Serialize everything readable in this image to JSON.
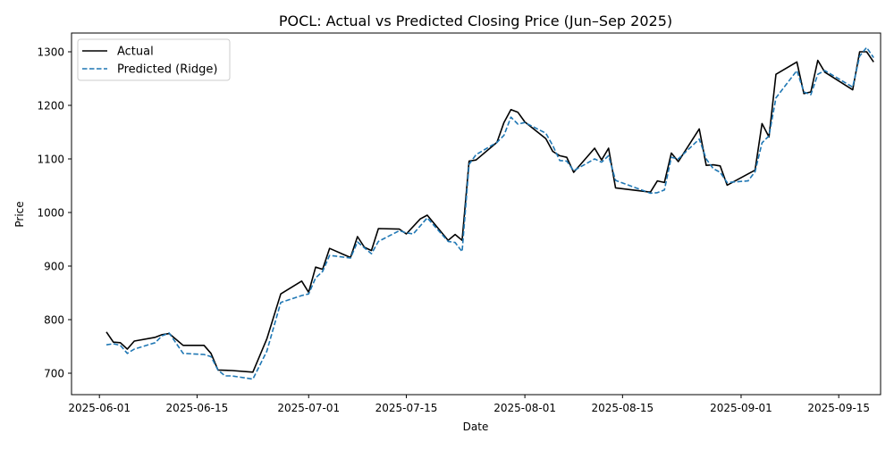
{
  "chart_data": {
    "type": "line",
    "title": "POCL: Actual vs Predicted Closing Price (Jun–Sep 2025)",
    "xlabel": "Date",
    "ylabel": "Price",
    "xlim": [
      "2025-05-28",
      "2025-09-21"
    ],
    "ylim": [
      660,
      1335
    ],
    "x_ticks": [
      "2025-06-01",
      "2025-06-15",
      "2025-07-01",
      "2025-07-15",
      "2025-08-01",
      "2025-08-15",
      "2025-09-01",
      "2025-09-15"
    ],
    "y_ticks": [
      700,
      800,
      900,
      1000,
      1100,
      1200,
      1300
    ],
    "grid": false,
    "legend_position": "top-left",
    "series": [
      {
        "name": "Actual",
        "color": "#000000",
        "style": "solid",
        "points": [
          [
            "2025-06-02",
            777
          ],
          [
            "2025-06-03",
            758
          ],
          [
            "2025-06-04",
            757
          ],
          [
            "2025-06-05",
            745
          ],
          [
            "2025-06-06",
            760
          ],
          [
            "2025-06-09",
            767
          ],
          [
            "2025-06-10",
            772
          ],
          [
            "2025-06-11",
            774
          ],
          [
            "2025-06-13",
            752
          ],
          [
            "2025-06-16",
            752
          ],
          [
            "2025-06-17",
            737
          ],
          [
            "2025-06-18",
            706
          ],
          [
            "2025-06-20",
            705
          ],
          [
            "2025-06-23",
            702
          ],
          [
            "2025-06-25",
            764
          ],
          [
            "2025-06-27",
            848
          ],
          [
            "2025-06-30",
            872
          ],
          [
            "2025-07-01",
            851
          ],
          [
            "2025-07-02",
            898
          ],
          [
            "2025-07-03",
            894
          ],
          [
            "2025-07-04",
            933
          ],
          [
            "2025-07-07",
            916
          ],
          [
            "2025-07-08",
            955
          ],
          [
            "2025-07-09",
            935
          ],
          [
            "2025-07-10",
            929
          ],
          [
            "2025-07-11",
            970
          ],
          [
            "2025-07-14",
            969
          ],
          [
            "2025-07-15",
            960
          ],
          [
            "2025-07-17",
            988
          ],
          [
            "2025-07-18",
            995
          ],
          [
            "2025-07-21",
            948
          ],
          [
            "2025-07-22",
            959
          ],
          [
            "2025-07-23",
            948
          ],
          [
            "2025-07-24",
            1096
          ],
          [
            "2025-07-25",
            1098
          ],
          [
            "2025-07-28",
            1131
          ],
          [
            "2025-07-29",
            1168
          ],
          [
            "2025-07-30",
            1192
          ],
          [
            "2025-07-31",
            1187
          ],
          [
            "2025-08-01",
            1169
          ],
          [
            "2025-08-04",
            1138
          ],
          [
            "2025-08-05",
            1114
          ],
          [
            "2025-08-06",
            1106
          ],
          [
            "2025-08-07",
            1103
          ],
          [
            "2025-08-08",
            1075
          ],
          [
            "2025-08-11",
            1120
          ],
          [
            "2025-08-12",
            1098
          ],
          [
            "2025-08-13",
            1120
          ],
          [
            "2025-08-14",
            1046
          ],
          [
            "2025-08-19",
            1038
          ],
          [
            "2025-08-20",
            1059
          ],
          [
            "2025-08-21",
            1056
          ],
          [
            "2025-08-22",
            1111
          ],
          [
            "2025-08-23",
            1095
          ],
          [
            "2025-08-26",
            1156
          ],
          [
            "2025-08-27",
            1088
          ],
          [
            "2025-08-28",
            1089
          ],
          [
            "2025-08-29",
            1087
          ],
          [
            "2025-08-30",
            1051
          ],
          [
            "2025-09-03",
            1079
          ],
          [
            "2025-09-04",
            1166
          ],
          [
            "2025-09-05",
            1141
          ],
          [
            "2025-09-06",
            1258
          ],
          [
            "2025-09-09",
            1281
          ],
          [
            "2025-09-10",
            1222
          ],
          [
            "2025-09-11",
            1225
          ],
          [
            "2025-09-12",
            1284
          ],
          [
            "2025-09-13",
            1262
          ],
          [
            "2025-09-17",
            1229
          ],
          [
            "2025-09-18",
            1300
          ],
          [
            "2025-09-19",
            1300
          ],
          [
            "2025-09-20",
            1281
          ]
        ]
      },
      {
        "name": "Predicted (Ridge)",
        "color": "#1f77b4",
        "style": "dashed",
        "points": [
          [
            "2025-06-02",
            753
          ],
          [
            "2025-06-03",
            755
          ],
          [
            "2025-06-04",
            752
          ],
          [
            "2025-06-05",
            737
          ],
          [
            "2025-06-06",
            745
          ],
          [
            "2025-06-09",
            757
          ],
          [
            "2025-06-10",
            770
          ],
          [
            "2025-06-11",
            775
          ],
          [
            "2025-06-13",
            737
          ],
          [
            "2025-06-16",
            735
          ],
          [
            "2025-06-17",
            731
          ],
          [
            "2025-06-18",
            706
          ],
          [
            "2025-06-19",
            695
          ],
          [
            "2025-06-20",
            695
          ],
          [
            "2025-06-23",
            689
          ],
          [
            "2025-06-25",
            741
          ],
          [
            "2025-06-27",
            832
          ],
          [
            "2025-06-30",
            845
          ],
          [
            "2025-07-01",
            848
          ],
          [
            "2025-07-02",
            878
          ],
          [
            "2025-07-03",
            890
          ],
          [
            "2025-07-04",
            920
          ],
          [
            "2025-07-07",
            915
          ],
          [
            "2025-07-08",
            945
          ],
          [
            "2025-07-10",
            923
          ],
          [
            "2025-07-11",
            946
          ],
          [
            "2025-07-14",
            966
          ],
          [
            "2025-07-15",
            962
          ],
          [
            "2025-07-16",
            960
          ],
          [
            "2025-07-18",
            990
          ],
          [
            "2025-07-21",
            946
          ],
          [
            "2025-07-22",
            944
          ],
          [
            "2025-07-23",
            927
          ],
          [
            "2025-07-24",
            1090
          ],
          [
            "2025-07-25",
            1108
          ],
          [
            "2025-07-28",
            1131
          ],
          [
            "2025-07-29",
            1144
          ],
          [
            "2025-07-30",
            1178
          ],
          [
            "2025-07-31",
            1165
          ],
          [
            "2025-08-01",
            1168
          ],
          [
            "2025-08-04",
            1148
          ],
          [
            "2025-08-05",
            1125
          ],
          [
            "2025-08-06",
            1097
          ],
          [
            "2025-08-07",
            1096
          ],
          [
            "2025-08-08",
            1078
          ],
          [
            "2025-08-11",
            1100
          ],
          [
            "2025-08-12",
            1094
          ],
          [
            "2025-08-13",
            1106
          ],
          [
            "2025-08-14",
            1060
          ],
          [
            "2025-08-19",
            1036
          ],
          [
            "2025-08-20",
            1037
          ],
          [
            "2025-08-21",
            1042
          ],
          [
            "2025-08-22",
            1103
          ],
          [
            "2025-08-23",
            1100
          ],
          [
            "2025-08-26",
            1137
          ],
          [
            "2025-08-27",
            1100
          ],
          [
            "2025-08-28",
            1082
          ],
          [
            "2025-08-29",
            1075
          ],
          [
            "2025-08-30",
            1056
          ],
          [
            "2025-09-02",
            1059
          ],
          [
            "2025-09-03",
            1076
          ],
          [
            "2025-09-04",
            1130
          ],
          [
            "2025-09-05",
            1143
          ],
          [
            "2025-09-06",
            1214
          ],
          [
            "2025-09-09",
            1265
          ],
          [
            "2025-09-10",
            1225
          ],
          [
            "2025-09-11",
            1220
          ],
          [
            "2025-09-12",
            1258
          ],
          [
            "2025-09-13",
            1265
          ],
          [
            "2025-09-17",
            1234
          ],
          [
            "2025-09-18",
            1292
          ],
          [
            "2025-09-19",
            1308
          ],
          [
            "2025-09-20",
            1289
          ]
        ]
      }
    ]
  }
}
